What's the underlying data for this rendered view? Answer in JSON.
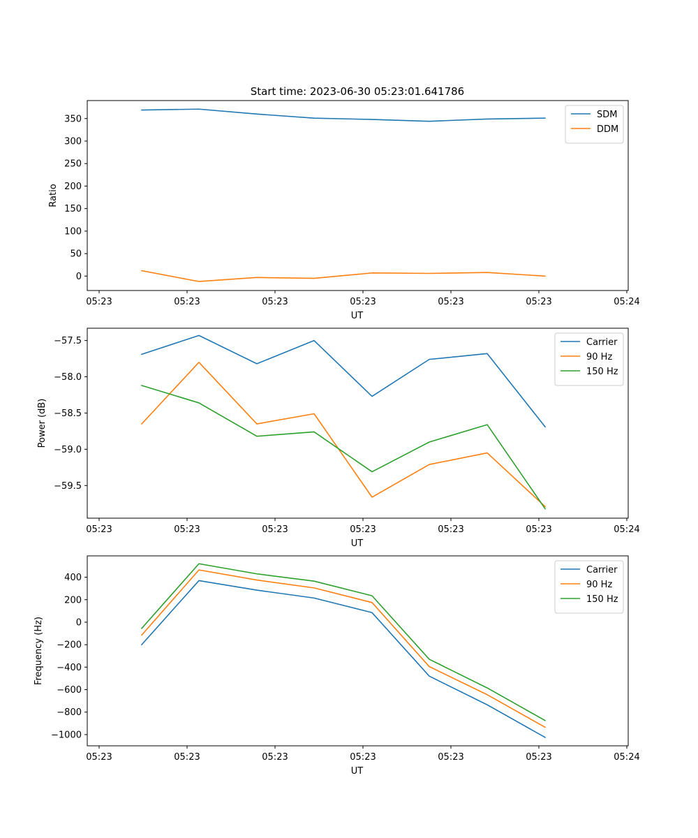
{
  "figure": {
    "title": "Start time: 2023-06-30 05:23:01.641786"
  },
  "chart_data": [
    {
      "type": "line",
      "title": "Start time: 2023-06-30 05:23:01.641786",
      "xlabel": "UT",
      "ylabel": "Ratio",
      "x_tick_labels": [
        "05:23",
        "05:23",
        "05:23",
        "05:23",
        "05:23",
        "05:23",
        "05:24"
      ],
      "ylim": [
        -32,
        390
      ],
      "yticks": [
        0,
        50,
        100,
        150,
        200,
        250,
        300,
        350
      ],
      "grid": false,
      "legend_position": "top-right",
      "series": [
        {
          "name": "SDM",
          "color": "#1f77b4",
          "values": [
            369,
            371,
            360,
            351,
            348,
            344,
            349,
            351
          ]
        },
        {
          "name": "DDM",
          "color": "#ff7f0e",
          "values": [
            12,
            -12,
            -3,
            -5,
            7,
            6,
            8,
            0
          ]
        }
      ]
    },
    {
      "type": "line",
      "title": "",
      "xlabel": "UT",
      "ylabel": "Power (dB)",
      "x_tick_labels": [
        "05:23",
        "05:23",
        "05:23",
        "05:23",
        "05:23",
        "05:23",
        "05:24"
      ],
      "ylim": [
        -59.95,
        -57.33
      ],
      "yticks": [
        -59.5,
        -59.0,
        -58.5,
        -58.0,
        -57.5
      ],
      "ytick_labels": [
        "−59.5",
        "−59.0",
        "−58.5",
        "−58.0",
        "−57.5"
      ],
      "grid": false,
      "legend_position": "top-right",
      "series": [
        {
          "name": "Carrier",
          "color": "#1f77b4",
          "values": [
            -57.69,
            -57.43,
            -57.82,
            -57.5,
            -58.27,
            -57.76,
            -57.68,
            -58.69
          ]
        },
        {
          "name": "90 Hz",
          "color": "#ff7f0e",
          "values": [
            -58.65,
            -57.8,
            -58.65,
            -58.51,
            -59.66,
            -59.21,
            -59.05,
            -59.79
          ]
        },
        {
          "name": "150 Hz",
          "color": "#2ca02c",
          "values": [
            -58.12,
            -58.36,
            -58.82,
            -58.76,
            -59.31,
            -58.9,
            -58.66,
            -59.82
          ]
        }
      ]
    },
    {
      "type": "line",
      "title": "",
      "xlabel": "UT",
      "ylabel": "Frequency (Hz)",
      "x_tick_labels": [
        "05:23",
        "05:23",
        "05:23",
        "05:23",
        "05:23",
        "05:23",
        "05:24"
      ],
      "ylim": [
        -1100,
        590
      ],
      "yticks": [
        -1000,
        -800,
        -600,
        -400,
        -200,
        0,
        200,
        400
      ],
      "ytick_labels": [
        "−1000",
        "−800",
        "−600",
        "−400",
        "−200",
        "0",
        "200",
        "400"
      ],
      "grid": false,
      "legend_position": "top-right",
      "series": [
        {
          "name": "Carrier",
          "color": "#1f77b4",
          "values": [
            -200,
            370,
            285,
            215,
            85,
            -480,
            -735,
            -1025
          ]
        },
        {
          "name": "90 Hz",
          "color": "#ff7f0e",
          "values": [
            -115,
            465,
            375,
            305,
            175,
            -395,
            -645,
            -935
          ]
        },
        {
          "name": "150 Hz",
          "color": "#2ca02c",
          "values": [
            -55,
            520,
            430,
            365,
            235,
            -330,
            -585,
            -875
          ]
        }
      ]
    }
  ]
}
